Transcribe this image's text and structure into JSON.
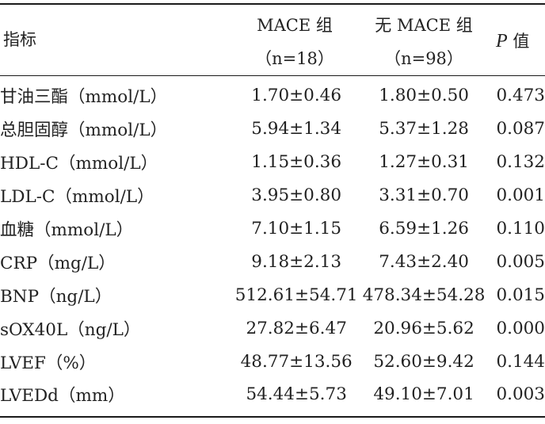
{
  "header": {
    "indicator": "指标",
    "mace": "MACE 组",
    "mace_n": "（n=18）",
    "no_mace": "无 MACE 组",
    "no_mace_n": "（n=98）",
    "p_letter": "P",
    "p_suffix": " 值"
  },
  "rows": [
    {
      "indicator": "甘油三酯（mmol/L）",
      "mace": "1.70±0.46",
      "no_mace": "1.80±0.50",
      "p": "0.473"
    },
    {
      "indicator": "总胆固醇（mmol/L）",
      "mace": "5.94±1.34",
      "no_mace": "5.37±1.28",
      "p": "0.087"
    },
    {
      "indicator": "HDL-C（mmol/L）",
      "mace": "1.15±0.36",
      "no_mace": "1.27±0.31",
      "p": "0.132"
    },
    {
      "indicator": "LDL-C（mmol/L）",
      "mace": "3.95±0.80",
      "no_mace": "3.31±0.70",
      "p": "0.001"
    },
    {
      "indicator": "血糖（mmol/L）",
      "mace": "7.10±1.15",
      "no_mace": "6.59±1.26",
      "p": "0.110"
    },
    {
      "indicator": "CRP（mg/L）",
      "mace": "9.18±2.13",
      "no_mace": "7.43±2.40",
      "p": "0.005"
    },
    {
      "indicator": "BNP（ng/L）",
      "mace": "512.61±54.71",
      "no_mace": "478.34±54.28",
      "p": "0.015"
    },
    {
      "indicator": "sOX40L（ng/L）",
      "mace": "27.82±6.47",
      "no_mace": "20.96±5.62",
      "p": "0.000"
    },
    {
      "indicator": "LVEF（%）",
      "mace": "48.77±13.56",
      "no_mace": "52.60±9.42",
      "p": "0.144"
    },
    {
      "indicator": "LVEDd（mm）",
      "mace": "54.44±5.73",
      "no_mace": "49.10±7.01",
      "p": "0.003"
    }
  ]
}
